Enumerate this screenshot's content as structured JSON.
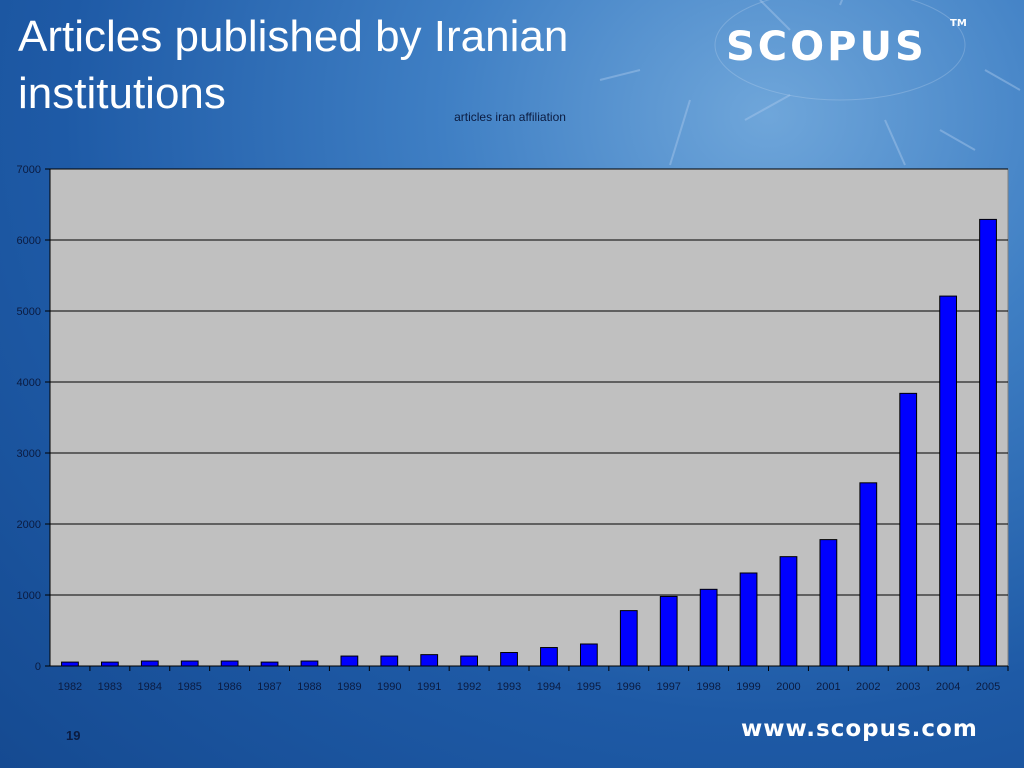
{
  "slide": {
    "title": "Articles published by Iranian institutions",
    "logo_text": "SCOPUS",
    "logo_trademark": "TM",
    "page_number": "19",
    "footer_url": "www.scopus.com"
  },
  "colors": {
    "background": "#1e5aa6",
    "plot_area": "#c0c0c0",
    "bar_fill": "#0000ff",
    "bar_stroke": "#000000",
    "text_dark": "#0b1b40",
    "text_light": "#ffffff"
  },
  "chart_data": {
    "type": "bar",
    "title": "articles iran affiliation",
    "xlabel": "",
    "ylabel": "",
    "categories": [
      "1982",
      "1983",
      "1984",
      "1985",
      "1986",
      "1987",
      "1988",
      "1989",
      "1990",
      "1991",
      "1992",
      "1993",
      "1994",
      "1995",
      "1996",
      "1997",
      "1998",
      "1999",
      "2000",
      "2001",
      "2002",
      "2003",
      "2004",
      "2005"
    ],
    "values": [
      55,
      55,
      70,
      70,
      70,
      55,
      70,
      140,
      140,
      160,
      140,
      190,
      260,
      310,
      780,
      980,
      1080,
      1310,
      1540,
      1780,
      2580,
      3840,
      5210,
      6290
    ],
    "ylim": [
      0,
      7000
    ],
    "yticks": [
      0,
      1000,
      2000,
      3000,
      4000,
      5000,
      6000,
      7000
    ],
    "grid": true,
    "legend": "none"
  }
}
